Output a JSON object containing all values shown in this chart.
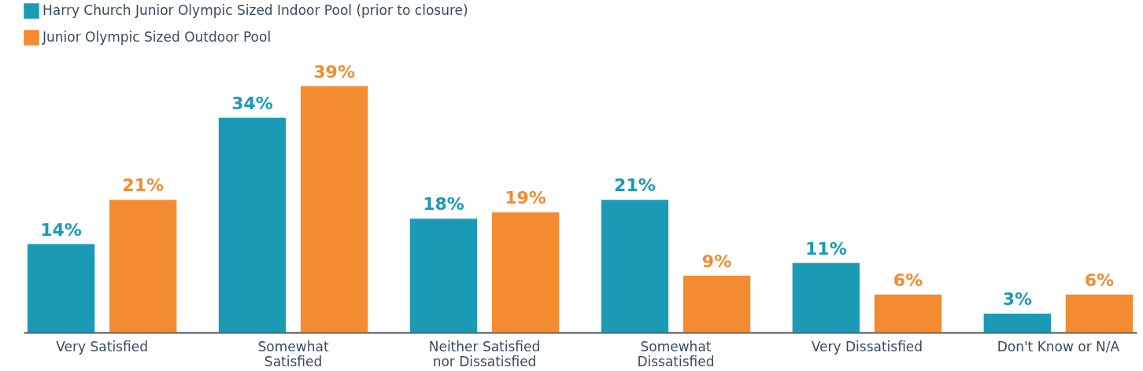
{
  "chart_data": {
    "type": "bar",
    "categories": [
      "Very Satisfied",
      "Somewhat Satisfied",
      "Neither Satisfied nor Dissatisfied",
      "Somewhat Dissatisfied",
      "Very Dissatisfied",
      "Don't Know or N/A"
    ],
    "series": [
      {
        "name": "Harry Church Junior Olympic Sized Indoor Pool (prior to closure)",
        "color": "#1b9ab5",
        "values": [
          14,
          34,
          18,
          21,
          11,
          3
        ],
        "value_labels": [
          "14%",
          "34%",
          "18%",
          "21%",
          "11%",
          "3%"
        ]
      },
      {
        "name": "Junior Olympic Sized Outdoor Pool",
        "color": "#f38b30",
        "values": [
          21,
          39,
          19,
          9,
          6,
          6
        ],
        "value_labels": [
          "21%",
          "39%",
          "19%",
          "9%",
          "6%",
          "6%"
        ]
      }
    ],
    "legend": "top left"
  }
}
